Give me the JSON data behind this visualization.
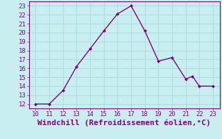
{
  "x_data": [
    10,
    11,
    12,
    13,
    14,
    15,
    16,
    17,
    18,
    19,
    20,
    21,
    21.5,
    22,
    23
  ],
  "y_data": [
    12,
    12,
    13.5,
    16.2,
    18.2,
    20.2,
    22.1,
    23.0,
    20.2,
    16.8,
    17.2,
    14.8,
    15.1,
    14.0,
    14.0
  ],
  "xlim": [
    9.5,
    23.5
  ],
  "ylim": [
    11.5,
    23.5
  ],
  "xticks": [
    10,
    11,
    12,
    13,
    14,
    15,
    16,
    17,
    18,
    19,
    20,
    21,
    22,
    23
  ],
  "yticks": [
    12,
    13,
    14,
    15,
    16,
    17,
    18,
    19,
    20,
    21,
    22,
    23
  ],
  "xlabel": "Windchill (Refroidissement éolien,°C)",
  "line_color": "#800080",
  "marker_color": "#800080",
  "bg_color": "#c8eef0",
  "grid_color": "#b0dde0",
  "tick_color": "#800080",
  "label_color": "#800080",
  "font_size": 6.5,
  "xlabel_fontsize": 8.0,
  "linewidth": 1.0,
  "markersize": 2.0
}
